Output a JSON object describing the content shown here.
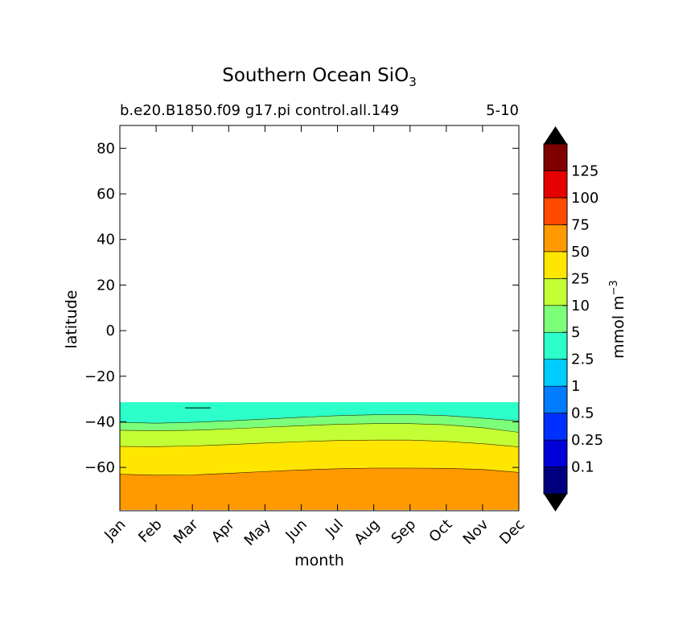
{
  "chart_data": {
    "type": "heatmap",
    "title": "Southern Ocean SiO",
    "title_subscript": "3",
    "subtitle_left": "b.e20.B1850.f09 g17.pi control.all.149",
    "subtitle_right": "5-10",
    "xlabel": "month",
    "ylabel": "latitude",
    "x_ticks": [
      "Jan",
      "Feb",
      "Mar",
      "Apr",
      "May",
      "Jun",
      "Jul",
      "Aug",
      "Sep",
      "Oct",
      "Nov",
      "Dec"
    ],
    "y_ticks": [
      "80",
      "60",
      "40",
      "20",
      "0",
      "−20",
      "−40",
      "−60"
    ],
    "y_tick_values": [
      80,
      60,
      40,
      20,
      0,
      -20,
      -40,
      -60
    ],
    "ylim": [
      -79,
      90
    ],
    "data_lat_range": [
      -78.5,
      -31.5
    ],
    "colorbar": {
      "label": "mmol m",
      "label_superscript": "−3",
      "tick_labels": [
        "0.1",
        "0.25",
        "0.5",
        "1",
        "2.5",
        "5",
        "10",
        "25",
        "50",
        "75",
        "100",
        "125"
      ],
      "level_colors": [
        "#00007f",
        "#0000d8",
        "#0030ff",
        "#007cff",
        "#00cdff",
        "#2cffca",
        "#7cff79",
        "#c2ff34",
        "#ffe600",
        "#ff9900",
        "#ff4a00",
        "#e70000",
        "#7f0000"
      ],
      "extend": "both",
      "under_color": "#000000",
      "over_color": "#000000"
    },
    "contour_boundaries": [
      {
        "level": "5",
        "lat": [
          -40.2,
          -40.6,
          -40.2,
          -39.6,
          -38.8,
          -38.0,
          -37.3,
          -36.9,
          -36.8,
          -37.3,
          -38.4,
          -39.6
        ]
      },
      {
        "level": "10",
        "lat": [
          -43.7,
          -43.9,
          -43.7,
          -43.1,
          -42.4,
          -41.7,
          -41.1,
          -40.8,
          -40.8,
          -41.3,
          -42.6,
          -44.6
        ]
      },
      {
        "level": "25",
        "lat": [
          -50.8,
          -50.9,
          -50.6,
          -50.0,
          -49.3,
          -48.7,
          -48.2,
          -48.0,
          -48.0,
          -48.6,
          -49.6,
          -51.0
        ]
      },
      {
        "level": "50",
        "lat": [
          -63.0,
          -63.4,
          -63.3,
          -62.6,
          -61.8,
          -61.1,
          -60.6,
          -60.3,
          -60.3,
          -60.4,
          -60.9,
          -62.2
        ]
      }
    ],
    "annotation_contour_fragment": {
      "x_months": [
        2.8,
        3.5
      ],
      "lat": -33.9
    }
  }
}
